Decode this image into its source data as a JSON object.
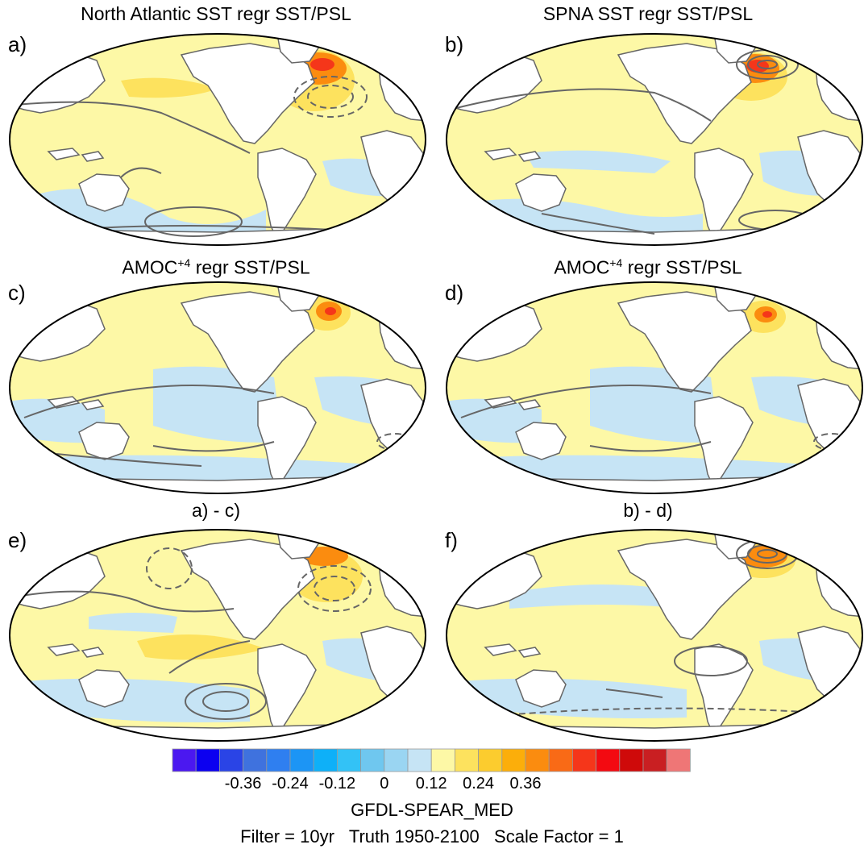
{
  "panels": [
    {
      "letter": "a)",
      "title": "North Atlantic SST regr SST/PSL"
    },
    {
      "letter": "b)",
      "title": "SPNA SST regr SST/PSL"
    },
    {
      "letter": "c)",
      "title_main": "AMOC",
      "title_sup": "+4",
      "title_rest": " regr SST/PSL"
    },
    {
      "letter": "d)",
      "title_main": "AMOC",
      "title_sup": "+4",
      "title_rest": " regr SST/PSL"
    },
    {
      "letter": "e)",
      "title": "a) - c)"
    },
    {
      "letter": "f)",
      "title": "b) - d)"
    }
  ],
  "colorbar": {
    "colors": [
      "#4b18f0",
      "#0c00f0",
      "#2a44e6",
      "#3f72de",
      "#2f7ff0",
      "#1c95f5",
      "#0eb0f8",
      "#33c2f6",
      "#6fc7ef",
      "#9ad5f2",
      "#c6e4f5",
      "#fdf8a6",
      "#fde25e",
      "#fccc2e",
      "#fcae0a",
      "#fb8c0f",
      "#f96a16",
      "#f5361a",
      "#f30a11",
      "#cf0a0a",
      "#c91f22",
      "#ef7676"
    ],
    "labels": [
      "-0.36",
      "-0.24",
      "-0.12",
      "0",
      "0.12",
      "0.24",
      "0.36"
    ]
  },
  "footer": {
    "model": "GFDL-SPEAR_MED",
    "info": "Filter = 10yr   Truth 1950-2100   Scale Factor = 1"
  }
}
